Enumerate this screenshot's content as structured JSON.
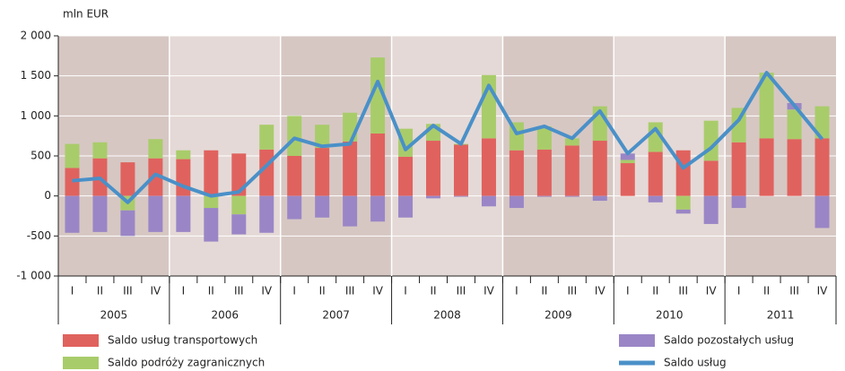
{
  "chart_data": {
    "type": "bar",
    "y_label": "mln EUR",
    "categories": [
      "I",
      "II",
      "III",
      "IV",
      "I",
      "II",
      "III",
      "IV",
      "I",
      "II",
      "III",
      "IV",
      "I",
      "II",
      "III",
      "IV",
      "I",
      "II",
      "III",
      "IV",
      "I",
      "II",
      "III",
      "IV",
      "I",
      "II",
      "III",
      "IV"
    ],
    "years": [
      "2005",
      "2006",
      "2007",
      "2008",
      "2009",
      "2010",
      "2011"
    ],
    "ylim": [
      -1000,
      2000
    ],
    "yticks": [
      {
        "value": -1000,
        "label": "-1 000"
      },
      -500,
      0,
      500,
      {
        "value": 1000,
        "label": "1 000"
      },
      {
        "value": 1500,
        "label": "1 500"
      },
      {
        "value": 2000,
        "label": "2 000"
      }
    ],
    "grid": true,
    "series": [
      {
        "name": "Saldo usług transportowych",
        "kind": "bar",
        "color": "#e0625e",
        "values": [
          350,
          470,
          420,
          470,
          460,
          570,
          530,
          580,
          500,
          600,
          680,
          780,
          490,
          690,
          640,
          720,
          570,
          580,
          630,
          690,
          410,
          550,
          570,
          440,
          670,
          720,
          710,
          720
        ]
      },
      {
        "name": "Saldo podróży zagranicznych",
        "kind": "bar",
        "color": "#a9cc6a",
        "values": [
          300,
          200,
          -180,
          240,
          110,
          -150,
          -230,
          310,
          500,
          290,
          360,
          950,
          350,
          210,
          10,
          790,
          350,
          290,
          90,
          430,
          40,
          370,
          -170,
          500,
          430,
          820,
          370,
          400
        ]
      },
      {
        "name": "Saldo pozostałych usług",
        "kind": "bar",
        "color": "#9a86c6",
        "values": [
          -460,
          -450,
          -320,
          -450,
          -450,
          -420,
          -250,
          -460,
          -290,
          -270,
          -380,
          -320,
          -270,
          -30,
          -10,
          -130,
          -150,
          -10,
          -10,
          -60,
          80,
          -80,
          -50,
          -350,
          -150,
          0,
          80,
          -400
        ]
      },
      {
        "name": "Saldo usług",
        "kind": "line",
        "color": "#4a90c8",
        "values": [
          190,
          220,
          -80,
          270,
          120,
          0,
          50,
          380,
          720,
          620,
          650,
          1430,
          580,
          880,
          650,
          1380,
          780,
          870,
          720,
          1060,
          530,
          840,
          350,
          600,
          950,
          1540,
          1130,
          710
        ]
      }
    ]
  }
}
